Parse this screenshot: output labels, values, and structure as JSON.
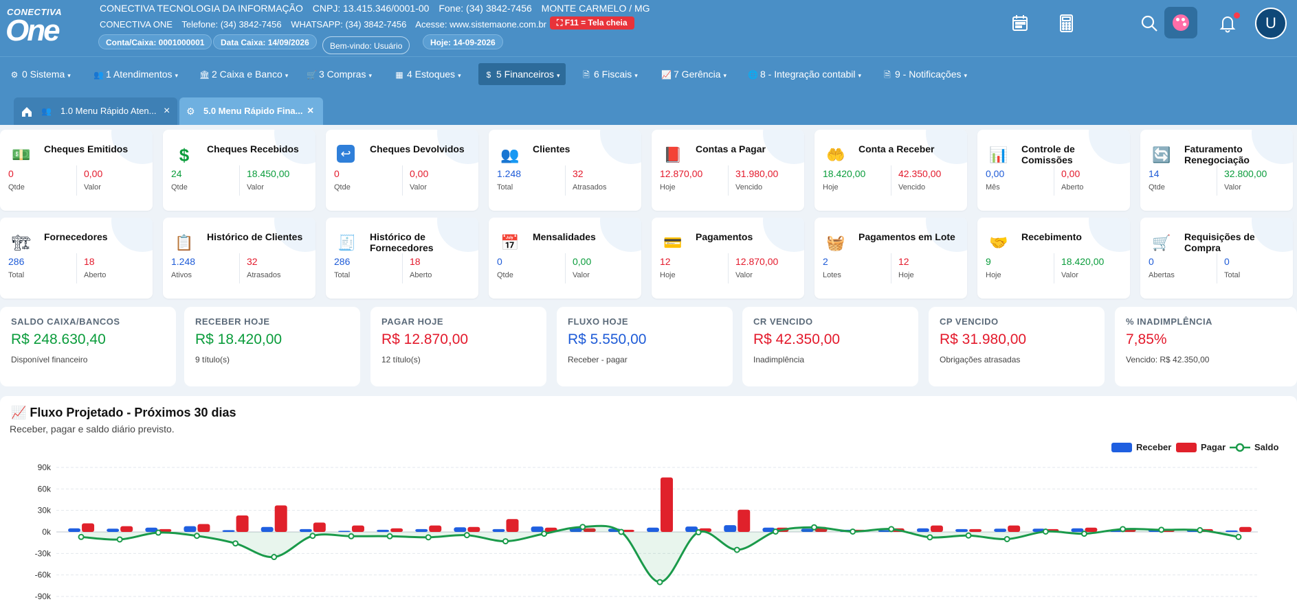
{
  "header": {
    "logo_top": "CONECTIVA",
    "logo_main": "One",
    "company": "CONECTIVA TECNOLOGIA DA INFORMAÇÃO",
    "cnpj": "CNPJ: 13.415.346/0001-00",
    "fone": "Fone: (34) 3842-7456",
    "city": "MONTE CARMELO / MG",
    "product": "CONECTIVA ONE",
    "telefone": "Telefone: (34) 3842-7456",
    "whatsapp": "WHATSAPP: (34) 3842-7456",
    "site": "Acesse: www.sistemaone.com.br",
    "conta_caixa": "Conta/Caixa: 0001000001",
    "data_caixa": "Data Caixa: 14/09/2026",
    "welcome": "Bem-vindo: Usuário",
    "hoje": "Hoje: 14-09-2026",
    "fullscreen": "⛶ F11 = Tela cheia",
    "avatar_letter": "U"
  },
  "menu": [
    {
      "icon": "gear-icon",
      "glyph": "⚙",
      "label": "0 Sistema"
    },
    {
      "icon": "users-icon",
      "glyph": "👥",
      "label": "1 Atendimentos"
    },
    {
      "icon": "bank-icon",
      "glyph": "🏛",
      "label": "2 Caixa e Banco"
    },
    {
      "icon": "cart-icon",
      "glyph": "🛒",
      "label": "3 Compras"
    },
    {
      "icon": "grid-icon",
      "glyph": "▦",
      "label": "4 Estoques"
    },
    {
      "icon": "dollar-icon",
      "glyph": "$",
      "label": "5 Financeiros"
    },
    {
      "icon": "file-icon",
      "glyph": "🗎",
      "label": "6 Fiscais"
    },
    {
      "icon": "chart-line-icon",
      "glyph": "📈",
      "label": "7 Gerência"
    },
    {
      "icon": "globe-icon",
      "glyph": "🌐",
      "label": "8 - Integração contabil"
    },
    {
      "icon": "file-icon",
      "glyph": "🗎",
      "label": "9 - Notificações"
    }
  ],
  "tabs": [
    {
      "label": "1.0 Menu Rápido Aten...",
      "close": "×"
    },
    {
      "label": "5.0 Menu Rápido Fina...",
      "close": "×"
    }
  ],
  "cards": [
    {
      "title": "Cheques Emitidos",
      "glyph": "💵",
      "icon": "cash-icon",
      "v1": "0",
      "c1": "red",
      "l1": "Qtde",
      "v2": "0,00",
      "c2": "red",
      "l2": "Valor"
    },
    {
      "title": "Cheques Recebidos",
      "glyph": "$",
      "icon": "dollar-icon",
      "v1": "24",
      "c1": "green",
      "l1": "Qtde",
      "v2": "18.450,00",
      "c2": "green",
      "l2": "Valor"
    },
    {
      "title": "Cheques Devolvidos",
      "glyph": "↩",
      "icon": "return-icon",
      "v1": "0",
      "c1": "red",
      "l1": "Qtde",
      "v2": "0,00",
      "c2": "red",
      "l2": "Valor"
    },
    {
      "title": "Clientes",
      "glyph": "👥",
      "icon": "users-icon",
      "v1": "1.248",
      "c1": "blue",
      "l1": "Total",
      "v2": "32",
      "c2": "red",
      "l2": "Atrasados"
    },
    {
      "title": "Contas a Pagar",
      "glyph": "📕",
      "icon": "book-icon",
      "v1": "12.870,00",
      "c1": "red",
      "l1": "Hoje",
      "v2": "31.980,00",
      "c2": "red",
      "l2": "Vencido"
    },
    {
      "title": "Conta a Receber",
      "glyph": "🤲",
      "icon": "hands-icon",
      "v1": "18.420,00",
      "c1": "green",
      "l1": "Hoje",
      "v2": "42.350,00",
      "c2": "red",
      "l2": "Vencido"
    },
    {
      "title": "Controle de Comissões",
      "glyph": "📊",
      "icon": "bar-chart-icon",
      "v1": "0,00",
      "c1": "blue",
      "l1": "Mês",
      "v2": "0,00",
      "c2": "red",
      "l2": "Aberto"
    },
    {
      "title": "Faturamento Renegociação",
      "glyph": "🔄",
      "icon": "refresh-icon",
      "v1": "14",
      "c1": "blue",
      "l1": "Qtde",
      "v2": "32.800,00",
      "c2": "green",
      "l2": "Valor"
    },
    {
      "title": "Fornecedores",
      "glyph": "🏗",
      "icon": "crane-icon",
      "v1": "286",
      "c1": "blue",
      "l1": "Total",
      "v2": "18",
      "c2": "red",
      "l2": "Aberto"
    },
    {
      "title": "Histórico de Clientes",
      "glyph": "📋",
      "icon": "clipboard-icon",
      "v1": "1.248",
      "c1": "blue",
      "l1": "Ativos",
      "v2": "32",
      "c2": "red",
      "l2": "Atrasados"
    },
    {
      "title": "Histórico de Fornecedores",
      "glyph": "🧾",
      "icon": "receipt-icon",
      "v1": "286",
      "c1": "blue",
      "l1": "Total",
      "v2": "18",
      "c2": "red",
      "l2": "Aberto"
    },
    {
      "title": "Mensalidades",
      "glyph": "📅",
      "icon": "calendar-icon",
      "v1": "0",
      "c1": "blue",
      "l1": "Qtde",
      "v2": "0,00",
      "c2": "green",
      "l2": "Valor"
    },
    {
      "title": "Pagamentos",
      "glyph": "💳",
      "icon": "credit-card-icon",
      "v1": "12",
      "c1": "red",
      "l1": "Hoje",
      "v2": "12.870,00",
      "c2": "red",
      "l2": "Valor"
    },
    {
      "title": "Pagamentos em Lote",
      "glyph": "🧺",
      "icon": "basket-icon",
      "v1": "2",
      "c1": "blue",
      "l1": "Lotes",
      "v2": "12",
      "c2": "red",
      "l2": "Hoje"
    },
    {
      "title": "Recebimento",
      "glyph": "🤝",
      "icon": "handshake-icon",
      "v1": "9",
      "c1": "green",
      "l1": "Hoje",
      "v2": "18.420,00",
      "c2": "green",
      "l2": "Valor"
    },
    {
      "title": "Requisições de Compra",
      "glyph": "🛒",
      "icon": "cart-icon",
      "v1": "0",
      "c1": "blue",
      "l1": "Abertas",
      "v2": "0",
      "c2": "blue",
      "l2": "Total"
    }
  ],
  "kpis": [
    {
      "title": "SALDO CAIXA/BANCOS",
      "value": "R$ 248.630,40",
      "color": "green",
      "sub": "Disponível financeiro"
    },
    {
      "title": "RECEBER HOJE",
      "value": "R$ 18.420,00",
      "color": "green",
      "sub": "9 título(s)"
    },
    {
      "title": "PAGAR HOJE",
      "value": "R$ 12.870,00",
      "color": "red",
      "sub": "12 título(s)"
    },
    {
      "title": "FLUXO HOJE",
      "value": "R$ 5.550,00",
      "color": "blue",
      "sub": "Receber - pagar"
    },
    {
      "title": "CR VENCIDO",
      "value": "R$ 42.350,00",
      "color": "red",
      "sub": "Inadimplência"
    },
    {
      "title": "CP VENCIDO",
      "value": "R$ 31.980,00",
      "color": "red",
      "sub": "Obrigações atrasadas"
    },
    {
      "title": "% INADIMPLÊNCIA",
      "value": "7,85%",
      "color": "red",
      "sub": "Vencido: R$ 42.350,00"
    }
  ],
  "chart": {
    "title": "📈 Fluxo Projetado - Próximos 30 dias",
    "subtitle": "Receber, pagar e saldo diário previsto.",
    "legend": [
      {
        "name": "Receber",
        "color": "#1f5fe0"
      },
      {
        "name": "Pagar",
        "color": "#e0212b"
      },
      {
        "name": "Saldo",
        "color": "#1a9a4a"
      }
    ]
  },
  "chart_data": {
    "type": "bar",
    "title": "Fluxo Projetado - Próximos 30 dias",
    "ylim": [
      -90000,
      90000
    ],
    "yticks": [
      "90k",
      "60k",
      "30k",
      "0k",
      "-30k",
      "-60k",
      "-90k"
    ],
    "ytick_values": [
      90000,
      60000,
      30000,
      0,
      -30000,
      -60000,
      -90000
    ],
    "series": [
      {
        "name": "Receber",
        "type": "bar",
        "color": "#1f5fe0",
        "values": [
          5000,
          4500,
          6000,
          8000,
          2500,
          7000,
          4000,
          1500,
          3000,
          4000,
          6500,
          4000,
          7500,
          6000,
          4500,
          6000,
          7500,
          9500,
          6000,
          4500,
          3000,
          2500,
          5000,
          4000,
          4500,
          4500,
          5000,
          3000,
          4000,
          3000,
          2000
        ]
      },
      {
        "name": "Pagar",
        "type": "bar",
        "color": "#e0212b",
        "values": [
          12000,
          8000,
          4000,
          11000,
          23000,
          37000,
          13000,
          9000,
          5000,
          9000,
          7000,
          18000,
          6000,
          5000,
          3000,
          76000,
          5000,
          31000,
          6000,
          7000,
          3000,
          5000,
          9000,
          4000,
          9000,
          4000,
          6000,
          5000,
          3000,
          4000,
          7000
        ]
      },
      {
        "name": "Saldo",
        "type": "line",
        "color": "#1a9a4a",
        "values": [
          -7000,
          -10500,
          -1000,
          -5500,
          -16000,
          -35000,
          -5500,
          -6000,
          -6000,
          -7500,
          -4500,
          -13000,
          -2500,
          7000,
          0,
          -70000,
          -500,
          -25000,
          500,
          6500,
          500,
          4000,
          -7500,
          -5000,
          -10000,
          500,
          -2500,
          4000,
          3000,
          2500,
          -7000
        ]
      }
    ],
    "legend_position": "top-right",
    "grid": true
  }
}
